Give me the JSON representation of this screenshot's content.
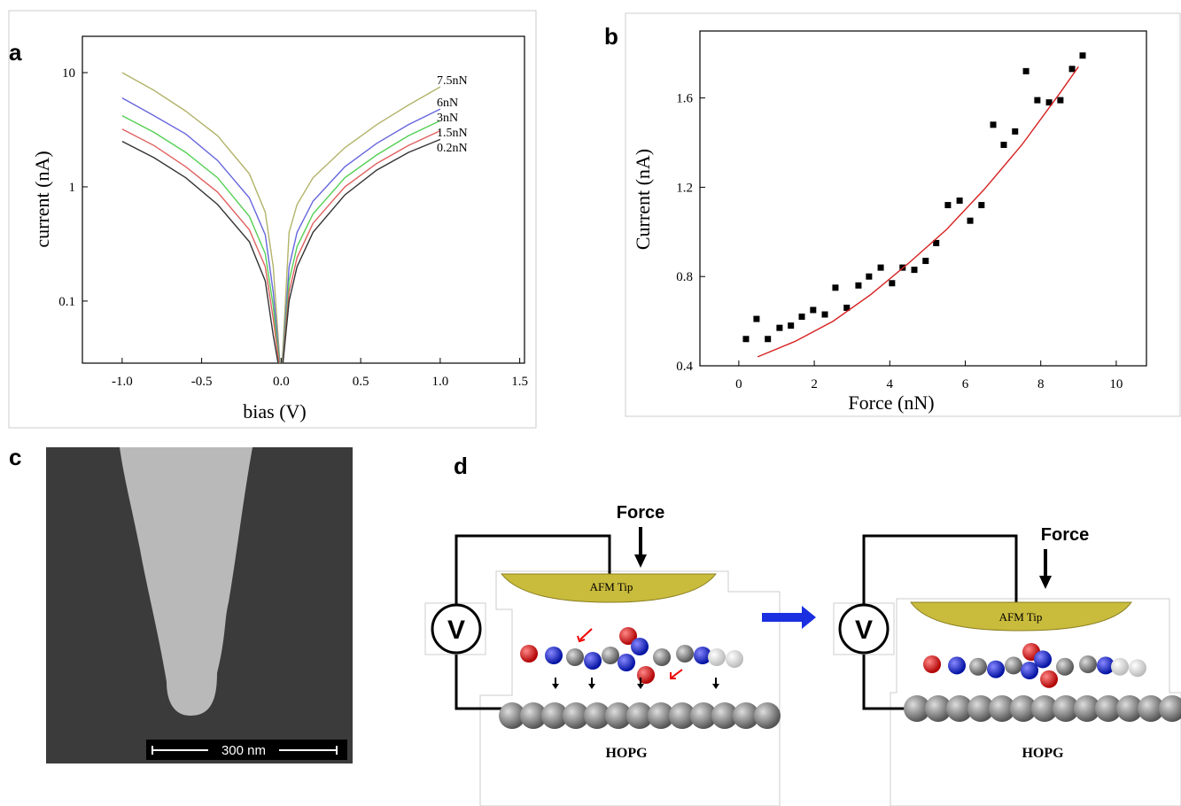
{
  "panel_labels": [
    "a",
    "b",
    "c",
    "d"
  ],
  "chart_data": [
    {
      "type": "line",
      "log_y": true,
      "x_label": "bias (V)",
      "y_label": "current (nA)",
      "x": [
        -1,
        -0.8,
        -0.6,
        -0.4,
        -0.2,
        -0.1,
        -0.05,
        0,
        0.05,
        0.1,
        0.2,
        0.4,
        0.6,
        0.8,
        1
      ],
      "series": [
        {
          "name": "7.5nN",
          "color": "#b3b36b",
          "values": [
            10,
            7,
            4.6,
            2.8,
            1.3,
            0.6,
            0.2,
            0.02,
            0.4,
            0.7,
            1.2,
            2.2,
            3.5,
            5.2,
            7.5
          ]
        },
        {
          "name": "6nN",
          "color": "#6666dd",
          "values": [
            6,
            4.2,
            2.9,
            1.7,
            0.8,
            0.38,
            0.12,
            0.02,
            0.2,
            0.4,
            0.75,
            1.5,
            2.4,
            3.5,
            4.8
          ]
        },
        {
          "name": "3nN",
          "color": "#55d055",
          "values": [
            4.2,
            3,
            2,
            1.2,
            0.55,
            0.26,
            0.09,
            0.02,
            0.15,
            0.3,
            0.58,
            1.2,
            1.9,
            2.8,
            3.8
          ]
        },
        {
          "name": "1.5nN",
          "color": "#e06060",
          "values": [
            3.2,
            2.3,
            1.5,
            0.9,
            0.42,
            0.2,
            0.07,
            0.02,
            0.12,
            0.24,
            0.48,
            1,
            1.6,
            2.3,
            3.1
          ]
        },
        {
          "name": "0.2nN",
          "color": "#333333",
          "values": [
            2.5,
            1.8,
            1.2,
            0.7,
            0.33,
            0.15,
            0.05,
            0.02,
            0.1,
            0.2,
            0.4,
            0.85,
            1.4,
            2,
            2.6
          ]
        }
      ],
      "xlim": [
        -1.25,
        1.53
      ],
      "ylim": [
        0.0286,
        20.8
      ],
      "xticks": [
        {
          "value": -1,
          "label": "-1.0"
        },
        -0.5,
        {
          "value": 0,
          "label": "0.0"
        },
        0.5,
        {
          "value": 1,
          "label": "1.0"
        },
        1.5
      ],
      "yticks": [
        0.1,
        1,
        10
      ]
    },
    {
      "type": "scatter",
      "x_label": "Force (nN)",
      "y_label": "Current (nA)",
      "series": [
        {
          "color": "#000000",
          "marker": "square",
          "x": [
            0.19,
            0.47,
            0.77,
            1.08,
            1.38,
            1.67,
            1.97,
            2.28,
            2.56,
            2.86,
            3.17,
            3.45,
            3.76,
            4.06,
            4.34,
            4.65,
            4.95,
            5.23,
            5.54,
            5.85,
            6.13,
            6.43,
            6.74,
            7.02,
            7.32,
            7.61,
            7.91,
            8.22,
            8.52,
            8.83,
            9.11
          ],
          "values": [
            0.52,
            0.61,
            0.52,
            0.57,
            0.58,
            0.62,
            0.65,
            0.63,
            0.75,
            0.66,
            0.76,
            0.8,
            0.84,
            0.77,
            0.84,
            0.83,
            0.87,
            0.95,
            1.12,
            1.14,
            1.05,
            1.12,
            1.48,
            1.39,
            1.45,
            1.72,
            1.59,
            1.58,
            1.59,
            1.73,
            1.79
          ]
        },
        {
          "color": "#d62020",
          "type": "line",
          "x": [
            0.5,
            1.5,
            2.5,
            3.5,
            4.5,
            5.5,
            6.5,
            7.5,
            8.5,
            9.0
          ],
          "values": [
            0.44,
            0.51,
            0.6,
            0.72,
            0.86,
            1.01,
            1.19,
            1.39,
            1.62,
            1.74
          ]
        }
      ],
      "xlim": [
        -1.03,
        10.8
      ],
      "ylim": [
        0.4,
        1.9
      ],
      "xticks": [
        0,
        2,
        4,
        6,
        8,
        10
      ],
      "yticks": [
        0.4,
        0.8,
        1.2,
        1.6
      ]
    }
  ],
  "sem_image": {
    "scale_bar": "300 nm"
  },
  "diagram": {
    "states": [
      {
        "force": "Force",
        "tip": "AFM Tip",
        "substrate": "HOPG",
        "meter": "V"
      },
      {
        "force": "Force",
        "tip": "AFM Tip",
        "substrate": "HOPG",
        "meter": "V"
      }
    ]
  }
}
